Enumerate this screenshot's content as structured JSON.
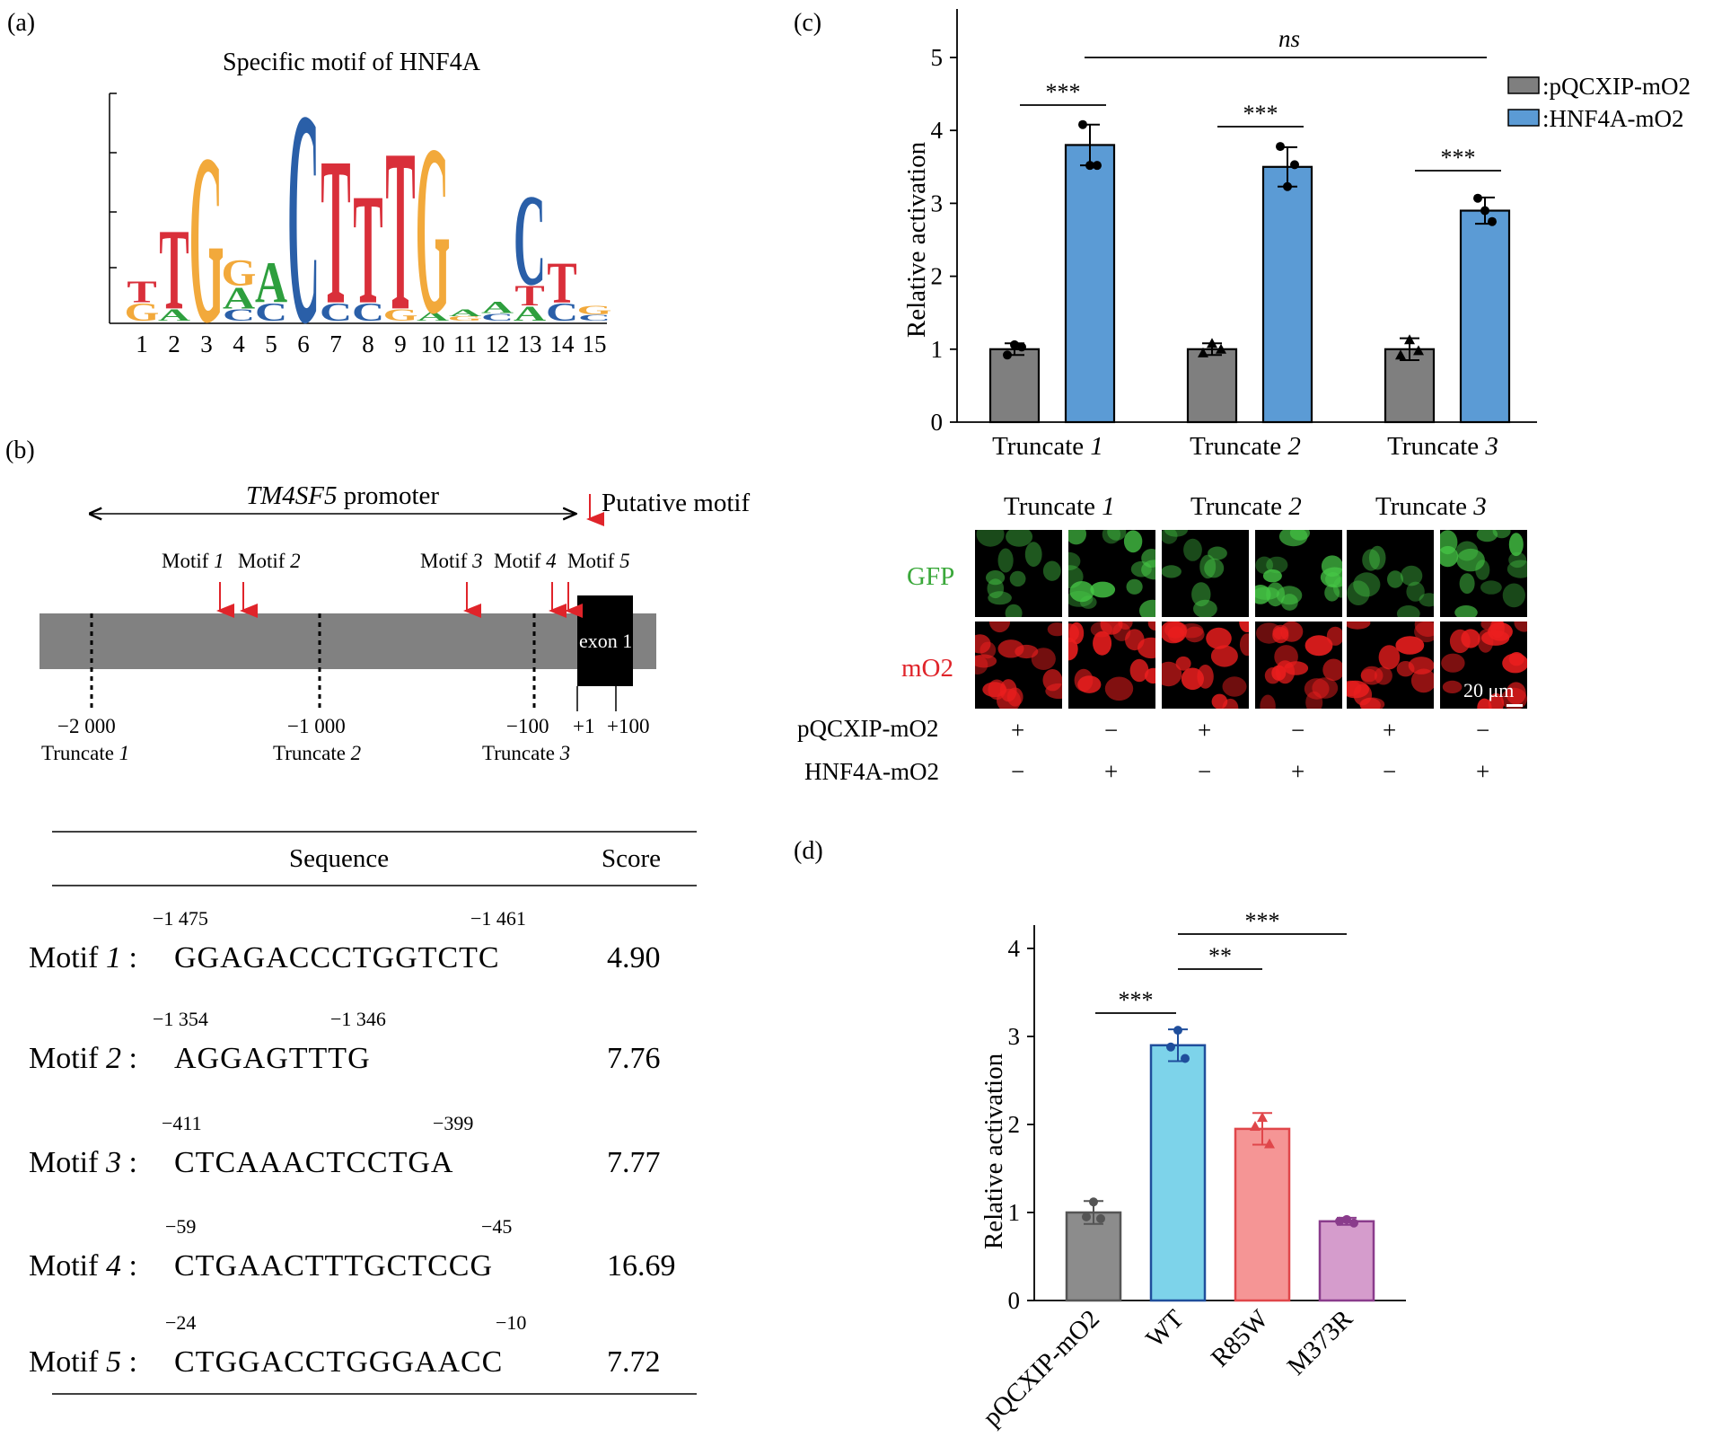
{
  "panel_a": {
    "label": "(a)",
    "title": "Specific motif of HNF4A",
    "positions": [
      "1",
      "2",
      "3",
      "4",
      "5",
      "6",
      "7",
      "8",
      "9",
      "10",
      "11",
      "12",
      "13",
      "14",
      "15"
    ],
    "motif_chart": {
      "type": "sequence-logo",
      "colors": {
        "A": "#2e9f3e",
        "C": "#2a5fa8",
        "G": "#f2a93b",
        "T": "#d92f3a"
      },
      "columns": [
        [
          {
            "l": "T",
            "v": 0.15
          },
          {
            "l": "G",
            "v": 0.12
          }
        ],
        [
          {
            "l": "T",
            "v": 0.55
          },
          {
            "l": "A",
            "v": 0.08
          }
        ],
        [
          {
            "l": "G",
            "v": 1.15
          }
        ],
        [
          {
            "l": "G",
            "v": 0.18
          },
          {
            "l": "A",
            "v": 0.15
          },
          {
            "l": "C",
            "v": 0.08
          }
        ],
        [
          {
            "l": "A",
            "v": 0.28
          },
          {
            "l": "C",
            "v": 0.12
          }
        ],
        [
          {
            "l": "C",
            "v": 1.45
          }
        ],
        [
          {
            "l": "T",
            "v": 1.0
          },
          {
            "l": "C",
            "v": 0.12
          }
        ],
        [
          {
            "l": "T",
            "v": 0.75
          },
          {
            "l": "C",
            "v": 0.12
          }
        ],
        [
          {
            "l": "T",
            "v": 1.1
          },
          {
            "l": "G",
            "v": 0.08
          }
        ],
        [
          {
            "l": "G",
            "v": 1.15
          },
          {
            "l": "A",
            "v": 0.06
          }
        ],
        [
          {
            "l": "A",
            "v": 0.05
          },
          {
            "l": "G",
            "v": 0.03
          }
        ],
        [
          {
            "l": "A",
            "v": 0.08
          },
          {
            "l": "C",
            "v": 0.05
          }
        ],
        [
          {
            "l": "C",
            "v": 0.62
          },
          {
            "l": "T",
            "v": 0.14
          },
          {
            "l": "A",
            "v": 0.1
          }
        ],
        [
          {
            "l": "T",
            "v": 0.28
          },
          {
            "l": "C",
            "v": 0.12
          }
        ],
        [
          {
            "l": "G",
            "v": 0.06
          },
          {
            "l": "C",
            "v": 0.04
          }
        ]
      ]
    }
  },
  "panel_b": {
    "label": "(b)",
    "gene": "TM4SF5",
    "promoter_word": " promoter",
    "legend": "Putative motif",
    "motif_labels": [
      {
        "name": "Motif ",
        "num": "1"
      },
      {
        "name": "Motif ",
        "num": "2"
      },
      {
        "name": "Motif ",
        "num": "3"
      },
      {
        "name": "Motif ",
        "num": "4"
      },
      {
        "name": "Motif ",
        "num": "5"
      }
    ],
    "exon": "exon 1",
    "coords": [
      "−2 000",
      "−1 000",
      "−100",
      "+1",
      "+100"
    ],
    "truncates": [
      {
        "name": "Truncate ",
        "num": "1"
      },
      {
        "name": "Truncate ",
        "num": "2"
      },
      {
        "name": "Truncate ",
        "num": "3"
      }
    ],
    "table": {
      "headers": {
        "sequence": "Sequence",
        "score": "Score"
      },
      "rows": [
        {
          "motif": "Motif ",
          "num": "1",
          " colon": ":",
          "start": "−1 475",
          "end": "−1 461",
          "seq": "GGAGACCCTGGTCTC",
          "score": "4.90"
        },
        {
          "motif": "Motif ",
          "num": "2",
          "colon": ":",
          "start": "−1 354",
          "end": "−1 346",
          "seq": "AGGAGTTTG",
          "score": "7.76"
        },
        {
          "motif": "Motif ",
          "num": "3",
          "colon": ":",
          "start": "−411",
          "end": "−399",
          "seq": "CTCAAACTCCTGA",
          "score": "7.77"
        },
        {
          "motif": "Motif ",
          "num": "4",
          "colon": ":",
          "start": "−59",
          "end": "−45",
          "seq": "CTGAACTTTGCTCCG",
          "score": "16.69"
        },
        {
          "motif": "Motif ",
          "num": "5",
          "colon": ":",
          "start": "−24",
          "end": "−10",
          "seq": "CTGGACCTGGGAACC",
          "score": "7.72"
        }
      ]
    }
  },
  "panel_c": {
    "label": "(c)",
    "microscopy": {
      "columns": [
        {
          "name": "Truncate ",
          "num": "1"
        },
        {
          "name": "Truncate ",
          "num": "2"
        },
        {
          "name": "Truncate ",
          "num": "3"
        }
      ],
      "rows": [
        "GFP",
        "mO2"
      ],
      "scale_bar": "20 μm",
      "conditions": [
        {
          "name": "pQCXIP-mO2",
          "signs": [
            "+",
            "−",
            "+",
            "−",
            "+",
            "−"
          ]
        },
        {
          "name": "HNF4A-mO2",
          "signs": [
            "−",
            "+",
            "−",
            "+",
            "−",
            "+"
          ]
        }
      ]
    }
  },
  "panel_d": {
    "label": "(d)"
  },
  "chart_data": [
    {
      "type": "bar",
      "panel": "c",
      "categories_prefix": "Truncate ",
      "categories": [
        "1",
        "2",
        "3"
      ],
      "ylabel": "Relative activation",
      "ylim": [
        0,
        5
      ],
      "yticks": [
        "0",
        "1",
        "2",
        "3",
        "4",
        "5"
      ],
      "legend_position": "top-right",
      "series": [
        {
          "name": ":pQCXIP-mO2",
          "color": "#7f7f7f",
          "values": [
            1.0,
            1.0,
            1.0
          ],
          "errors": [
            0.08,
            0.08,
            0.15
          ],
          "points": [
            [
              0.92,
              1.06,
              1.03
            ],
            [
              0.95,
              1.08,
              1.0
            ],
            [
              0.92,
              1.13,
              0.98
            ]
          ]
        },
        {
          "name": ":HNF4A-mO2",
          "color": "#5b9bd5",
          "values": [
            3.8,
            3.5,
            2.9
          ],
          "errors": [
            0.28,
            0.27,
            0.18
          ],
          "points": [
            [
              4.08,
              3.52,
              3.52
            ],
            [
              3.78,
              3.23,
              3.53
            ],
            [
              3.07,
              2.9,
              2.75
            ]
          ]
        }
      ],
      "significance": [
        {
          "label": "***",
          "pair": "c1"
        },
        {
          "label": "***",
          "pair": "c2"
        },
        {
          "label": "***",
          "pair": "c3"
        },
        {
          "label": "ns",
          "pair": "t1-t3"
        }
      ]
    },
    {
      "type": "bar",
      "panel": "d",
      "categories": [
        "pQCXIP-mO2",
        "WT",
        "R85W",
        "M373R"
      ],
      "ylabel": "Relative activation",
      "ylim": [
        0,
        4
      ],
      "yticks": [
        "0",
        "1",
        "2",
        "3",
        "4"
      ],
      "series": [
        {
          "name": "",
          "values": [
            1.0,
            2.9,
            1.95,
            0.9
          ],
          "errors": [
            0.13,
            0.18,
            0.18,
            0.04
          ],
          "colors": [
            "#8c8c8c",
            "#7dd3ea",
            "#f59595",
            "#d59ccc"
          ],
          "edges": [
            "#555555",
            "#1f4e9c",
            "#e0464a",
            "#8a3c8c"
          ],
          "markers": [
            "circle",
            "circle",
            "triangle",
            "circle"
          ],
          "points": [
            [
              1.12,
              0.95,
              0.93
            ],
            [
              3.07,
              2.88,
              2.75
            ],
            [
              2.08,
              1.98,
              1.78
            ],
            [
              0.92,
              0.9,
              0.88
            ]
          ]
        }
      ],
      "significance": [
        {
          "label": "***",
          "pair": "pQCXIP-mO2–WT"
        },
        {
          "label": "**",
          "pair": "WT–R85W"
        },
        {
          "label": "***",
          "pair": "WT–M373R"
        }
      ]
    }
  ]
}
